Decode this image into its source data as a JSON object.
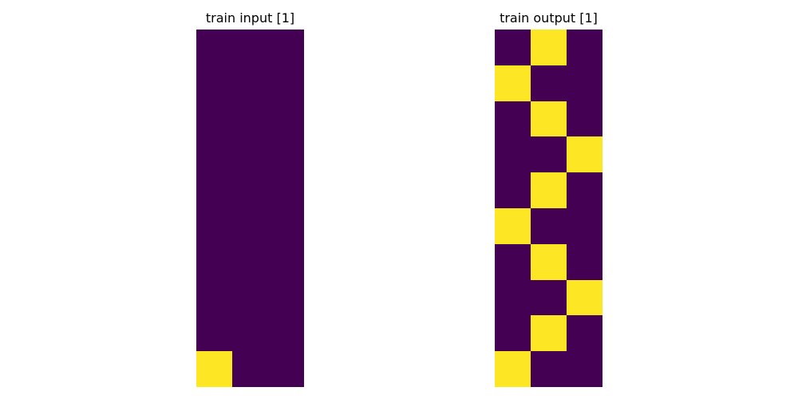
{
  "colors": {
    "background_value_0": "#440154",
    "foreground_value_1": "#fde725"
  },
  "panels": [
    {
      "title": "train input [1]",
      "rows": 10,
      "cols": 3,
      "grid": [
        [
          0,
          0,
          0
        ],
        [
          0,
          0,
          0
        ],
        [
          0,
          0,
          0
        ],
        [
          0,
          0,
          0
        ],
        [
          0,
          0,
          0
        ],
        [
          0,
          0,
          0
        ],
        [
          0,
          0,
          0
        ],
        [
          0,
          0,
          0
        ],
        [
          0,
          0,
          0
        ],
        [
          1,
          0,
          0
        ]
      ]
    },
    {
      "title": "train output [1]",
      "rows": 10,
      "cols": 3,
      "grid": [
        [
          0,
          1,
          0
        ],
        [
          1,
          0,
          0
        ],
        [
          0,
          1,
          0
        ],
        [
          0,
          0,
          1
        ],
        [
          0,
          1,
          0
        ],
        [
          1,
          0,
          0
        ],
        [
          0,
          1,
          0
        ],
        [
          0,
          0,
          1
        ],
        [
          0,
          1,
          0
        ],
        [
          1,
          0,
          0
        ]
      ]
    }
  ]
}
